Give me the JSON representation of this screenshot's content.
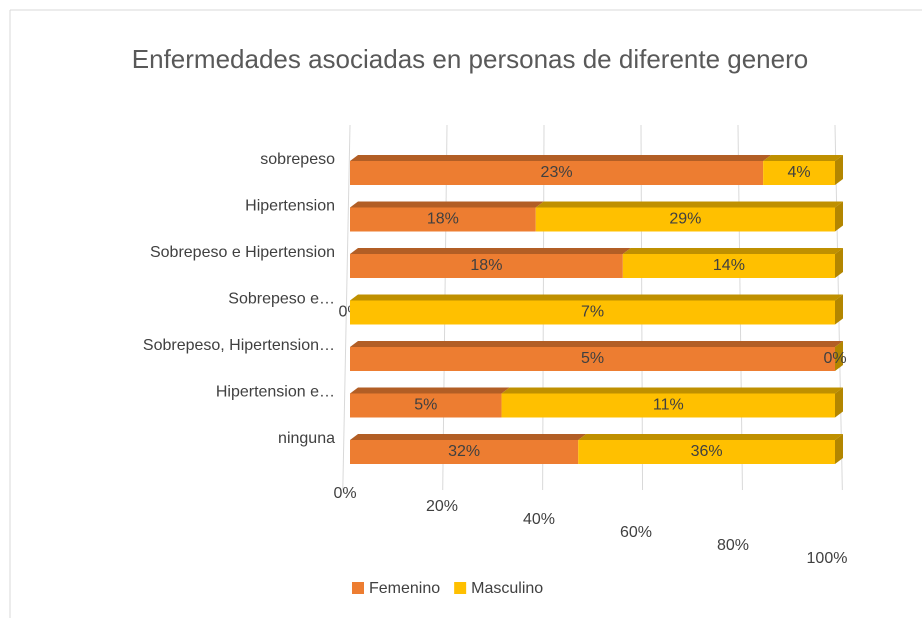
{
  "chart_data": {
    "type": "bar",
    "orientation": "horizontal",
    "stacking": "percent",
    "title": "Enfermedades asociadas en personas de diferente genero",
    "categories": [
      "sobrepeso",
      "Hipertension",
      "Sobrepeso e Hipertension",
      "Sobrepeso e…",
      "Sobrepeso, Hipertension…",
      "Hipertension e…",
      "ninguna"
    ],
    "series": [
      {
        "name": "Femenino",
        "color": "#ED7D31",
        "values": [
          23,
          18,
          18,
          0,
          5,
          5,
          32
        ],
        "value_labels": [
          "23%",
          "18%",
          "18%",
          "0%",
          "5%",
          "5%",
          "32%"
        ]
      },
      {
        "name": "Masculino",
        "color": "#FFC000",
        "values": [
          4,
          29,
          14,
          7,
          0,
          11,
          36
        ],
        "value_labels": [
          "4%",
          "29%",
          "14%",
          "7%",
          "0%",
          "11%",
          "36%"
        ]
      }
    ],
    "xlim": [
      0,
      100
    ],
    "xticks": [
      {
        "value": 0,
        "label": "0%"
      },
      {
        "value": 20,
        "label": "20%"
      },
      {
        "value": 40,
        "label": "40%"
      },
      {
        "value": 60,
        "label": "60%"
      },
      {
        "value": 80,
        "label": "80%"
      },
      {
        "value": 100,
        "label": "100%"
      }
    ],
    "grid": true,
    "legend": "bottom"
  }
}
